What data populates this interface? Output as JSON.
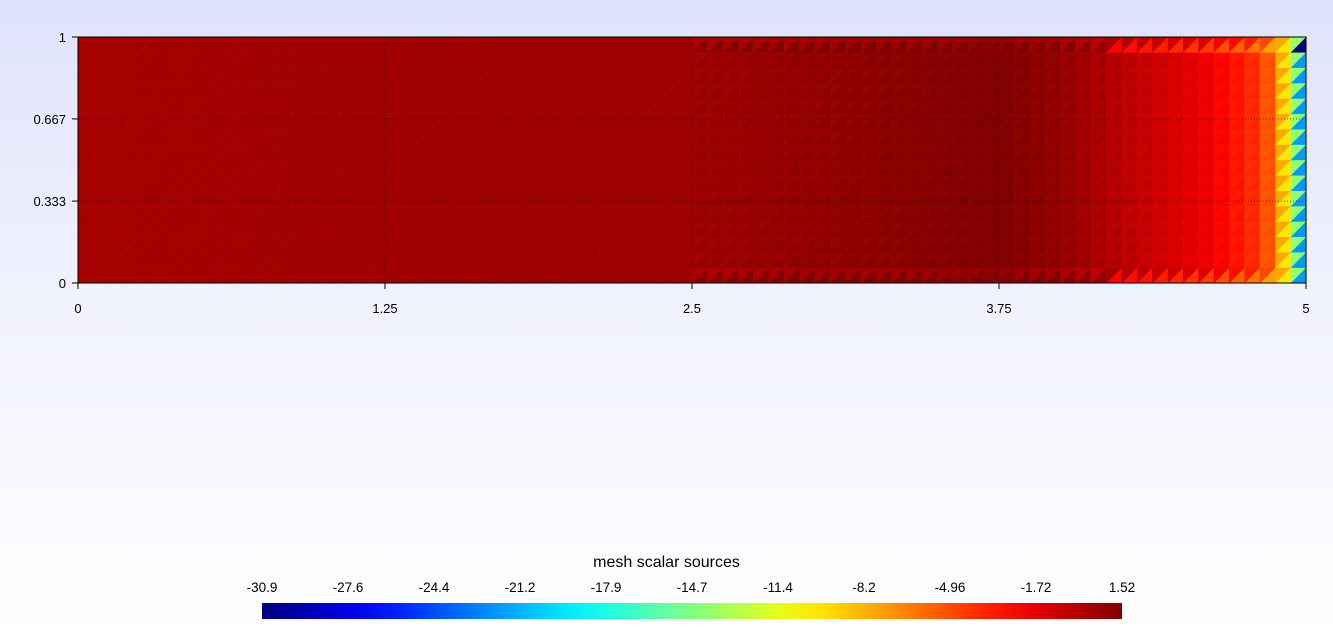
{
  "chart_data": {
    "type": "heatmap",
    "title": "",
    "xlabel": "",
    "ylabel": "",
    "xlim": [
      0,
      5
    ],
    "ylim": [
      0,
      1
    ],
    "x_ticks": [
      "0",
      "1.25",
      "2.5",
      "3.75",
      "5"
    ],
    "y_ticks": [
      "0",
      "0.333",
      "0.667",
      "1"
    ],
    "grid": true,
    "mesh": {
      "nx": 80,
      "ny": 16,
      "cell": "triangulated"
    },
    "field_profile_x": [
      0,
      1.25,
      2.5,
      3.4,
      3.75,
      4.0,
      4.3,
      4.6,
      4.8,
      4.95
    ],
    "field_profile_value": [
      0.3,
      0.5,
      0.6,
      1.2,
      1.52,
      0.9,
      -0.5,
      -2.0,
      -4.0,
      -8.0
    ],
    "right_edge_values": [
      -22.0,
      -14.0
    ],
    "corner_value_top_right": -30.9,
    "colorscale": "jet",
    "colorbar": {
      "title": "mesh scalar sources",
      "ticks": [
        "-30.9",
        "-27.6",
        "-24.4",
        "-21.2",
        "-17.9",
        "-14.7",
        "-11.4",
        "-8.2",
        "-4.96",
        "-1.72",
        "1.52"
      ],
      "min": -30.9,
      "max": 1.52,
      "orientation": "horizontal",
      "placement": "bottom"
    }
  }
}
